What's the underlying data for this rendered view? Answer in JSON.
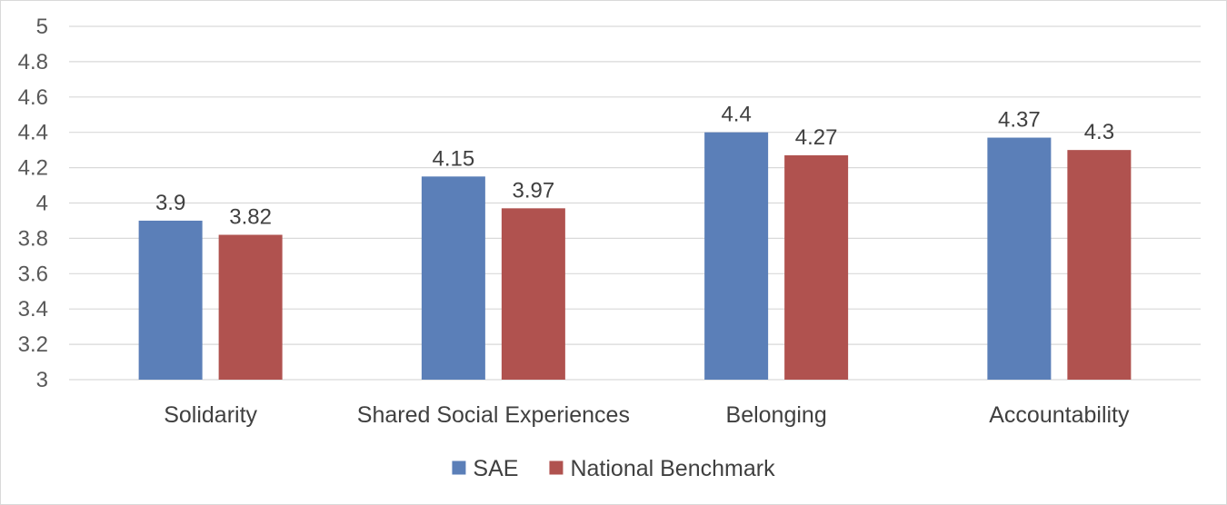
{
  "chart_data": {
    "type": "bar",
    "title": "",
    "xlabel": "",
    "ylabel": "",
    "ylim": [
      3,
      5
    ],
    "yticks": [
      3,
      3.2,
      3.4,
      3.6,
      3.8,
      4,
      4.2,
      4.4,
      4.6,
      4.8,
      5
    ],
    "grid": true,
    "legend_position": "bottom",
    "categories": [
      "Solidarity",
      "Shared Social Experiences",
      "Belonging",
      "Accountability"
    ],
    "series": [
      {
        "name": "SAE",
        "color": "#5b7fb8",
        "values": [
          3.9,
          4.15,
          4.4,
          4.37
        ],
        "labels": [
          "3.9",
          "4.15",
          "4.4",
          "4.37"
        ]
      },
      {
        "name": "National Benchmark",
        "color": "#b0524f",
        "values": [
          3.82,
          3.97,
          4.27,
          4.3
        ],
        "labels": [
          "3.82",
          "3.97",
          "4.27",
          "4.3"
        ]
      }
    ]
  }
}
